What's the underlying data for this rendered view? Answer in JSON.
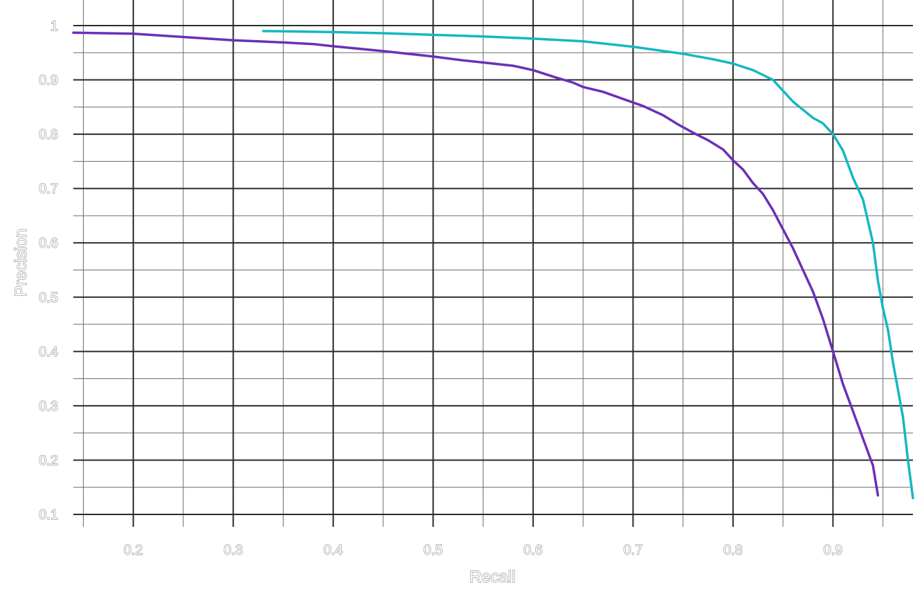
{
  "chart_data": {
    "type": "line",
    "title": "",
    "xlabel": "Recall",
    "ylabel": "Precision",
    "xlim": [
      0.14,
      0.98
    ],
    "ylim": [
      0.1,
      1.0
    ],
    "xticks": [
      "0.2",
      "0.3",
      "0.4",
      "0.5",
      "0.6",
      "0.7",
      "0.8",
      "0.9"
    ],
    "xtick_values": [
      0.2,
      0.3,
      0.4,
      0.5,
      0.6,
      0.7,
      0.8,
      0.9
    ],
    "yticks": [
      "0.1",
      "0.2",
      "0.3",
      "0.4",
      "0.5",
      "0.6",
      "0.7",
      "0.8",
      "0.9",
      "1"
    ],
    "ytick_values": [
      0.1,
      0.2,
      0.3,
      0.4,
      0.5,
      0.6,
      0.7,
      0.8,
      0.9,
      1.0
    ],
    "grid": true,
    "legend": false,
    "series": [
      {
        "color": "#6a30b8",
        "x": [
          0.14,
          0.2,
          0.25,
          0.3,
          0.35,
          0.38,
          0.4,
          0.45,
          0.5,
          0.53,
          0.55,
          0.58,
          0.6,
          0.62,
          0.64,
          0.65,
          0.67,
          0.69,
          0.71,
          0.73,
          0.745,
          0.76,
          0.775,
          0.79,
          0.8,
          0.81,
          0.82,
          0.83,
          0.84,
          0.85,
          0.86,
          0.87,
          0.88,
          0.89,
          0.9,
          0.91,
          0.92,
          0.93,
          0.94,
          0.945
        ],
        "y": [
          0.987,
          0.985,
          0.979,
          0.973,
          0.969,
          0.966,
          0.962,
          0.953,
          0.943,
          0.936,
          0.932,
          0.926,
          0.918,
          0.906,
          0.895,
          0.887,
          0.878,
          0.865,
          0.852,
          0.835,
          0.818,
          0.803,
          0.789,
          0.772,
          0.752,
          0.735,
          0.71,
          0.69,
          0.66,
          0.625,
          0.59,
          0.55,
          0.51,
          0.46,
          0.4,
          0.34,
          0.29,
          0.24,
          0.19,
          0.135
        ]
      },
      {
        "color": "#14b8c0",
        "x": [
          0.33,
          0.4,
          0.45,
          0.5,
          0.55,
          0.6,
          0.65,
          0.7,
          0.75,
          0.78,
          0.8,
          0.82,
          0.84,
          0.86,
          0.88,
          0.89,
          0.9,
          0.91,
          0.92,
          0.93,
          0.94,
          0.945,
          0.95,
          0.955,
          0.96,
          0.965,
          0.97,
          0.975,
          0.98
        ],
        "y": [
          0.99,
          0.988,
          0.986,
          0.983,
          0.98,
          0.976,
          0.971,
          0.961,
          0.948,
          0.938,
          0.93,
          0.918,
          0.9,
          0.86,
          0.83,
          0.82,
          0.8,
          0.77,
          0.72,
          0.68,
          0.6,
          0.53,
          0.48,
          0.44,
          0.38,
          0.33,
          0.28,
          0.2,
          0.13
        ]
      }
    ]
  }
}
